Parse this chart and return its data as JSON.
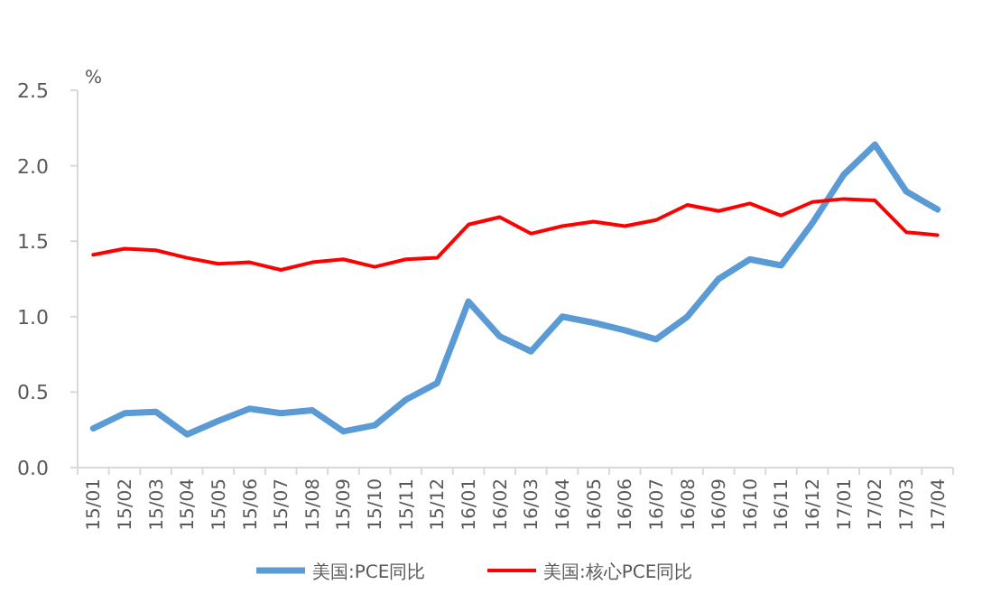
{
  "chart_data": {
    "type": "line",
    "ylabel": "%",
    "categories": [
      "15/01",
      "15/02",
      "15/03",
      "15/04",
      "15/05",
      "15/06",
      "15/07",
      "15/08",
      "15/09",
      "15/10",
      "15/11",
      "15/12",
      "16/01",
      "16/02",
      "16/03",
      "16/04",
      "16/05",
      "16/06",
      "16/07",
      "16/08",
      "16/09",
      "16/10",
      "16/11",
      "16/12",
      "17/01",
      "17/02",
      "17/03",
      "17/04"
    ],
    "series": [
      {
        "name": "美国:PCE同比",
        "color": "#5b9bd5",
        "values": [
          0.26,
          0.36,
          0.37,
          0.22,
          0.31,
          0.39,
          0.36,
          0.38,
          0.24,
          0.28,
          0.45,
          0.56,
          1.1,
          0.87,
          0.77,
          1.0,
          0.96,
          0.91,
          0.85,
          1.0,
          1.25,
          1.38,
          1.34,
          1.62,
          1.94,
          2.14,
          1.83,
          1.71
        ]
      },
      {
        "name": "美国:核心PCE同比",
        "color": "#ff0000",
        "values": [
          1.41,
          1.45,
          1.44,
          1.39,
          1.35,
          1.36,
          1.31,
          1.36,
          1.38,
          1.33,
          1.38,
          1.39,
          1.61,
          1.66,
          1.55,
          1.6,
          1.63,
          1.6,
          1.64,
          1.74,
          1.7,
          1.75,
          1.67,
          1.76,
          1.78,
          1.77,
          1.56,
          1.54
        ]
      }
    ],
    "ylim": [
      0,
      2.5
    ],
    "yticks": [
      {
        "value": 0,
        "label": "0.0"
      },
      {
        "value": 0.5,
        "label": "0.5"
      },
      {
        "value": 1,
        "label": "1.0"
      },
      {
        "value": 1.5,
        "label": "1.5"
      },
      {
        "value": 2,
        "label": "2.0"
      },
      {
        "value": 2.5,
        "label": "2.5"
      }
    ],
    "legend": "bottom",
    "grid": false
  }
}
